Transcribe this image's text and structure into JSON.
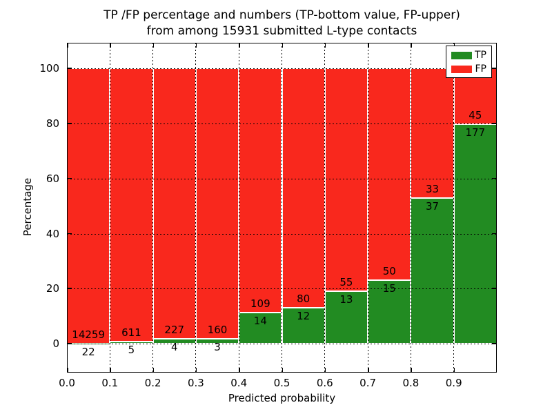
{
  "figure": {
    "title_lines": [
      "TP /FP percentage and numbers (TP-bottom value, FP-upper)",
      "from among 15931 submitted L-type contacts"
    ]
  },
  "chart_data": {
    "type": "bar",
    "stacked": true,
    "normalized_to": 100,
    "title": "TP /FP percentage and numbers (TP-bottom value, FP-upper)\nfrom among 15931 submitted L-type contacts",
    "total_submitted": 15931,
    "xlabel": "Predicted probability",
    "ylabel": "Percentage",
    "xlim": [
      0.0,
      1.0
    ],
    "ylim": [
      -10.5,
      109.4
    ],
    "bin_width": 0.1,
    "bin_starts": [
      0.0,
      0.1,
      0.2,
      0.3,
      0.4,
      0.5,
      0.6,
      0.7,
      0.8,
      0.9
    ],
    "x_tick_labels": [
      "0.0",
      "0.1",
      "0.2",
      "0.3",
      "0.4",
      "0.5",
      "0.6",
      "0.7",
      "0.8",
      "0.9"
    ],
    "y_tick_values": [
      0,
      20,
      40,
      60,
      80,
      100
    ],
    "grid": "dotted, on",
    "series": [
      {
        "name": "TP",
        "color": "#228b22",
        "counts": [
          22,
          5,
          4,
          3,
          14,
          12,
          13,
          15,
          37,
          177
        ]
      },
      {
        "name": "FP",
        "color": "#f9281d",
        "counts": [
          14259,
          611,
          227,
          160,
          109,
          80,
          55,
          50,
          33,
          45
        ]
      }
    ],
    "tp_percent_of_bin": [
      0.2,
      0.8,
      1.7,
      1.8,
      11.4,
      13.0,
      19.1,
      23.1,
      52.9,
      79.7
    ],
    "legend": {
      "position": "upper right",
      "entries": [
        {
          "label": "TP",
          "color": "#228b22"
        },
        {
          "label": "FP",
          "color": "#f9281d"
        }
      ]
    },
    "colors": {
      "bar_edge": "#ffffff",
      "grid": "#000000",
      "text": "#000000",
      "background": "#ffffff"
    }
  }
}
